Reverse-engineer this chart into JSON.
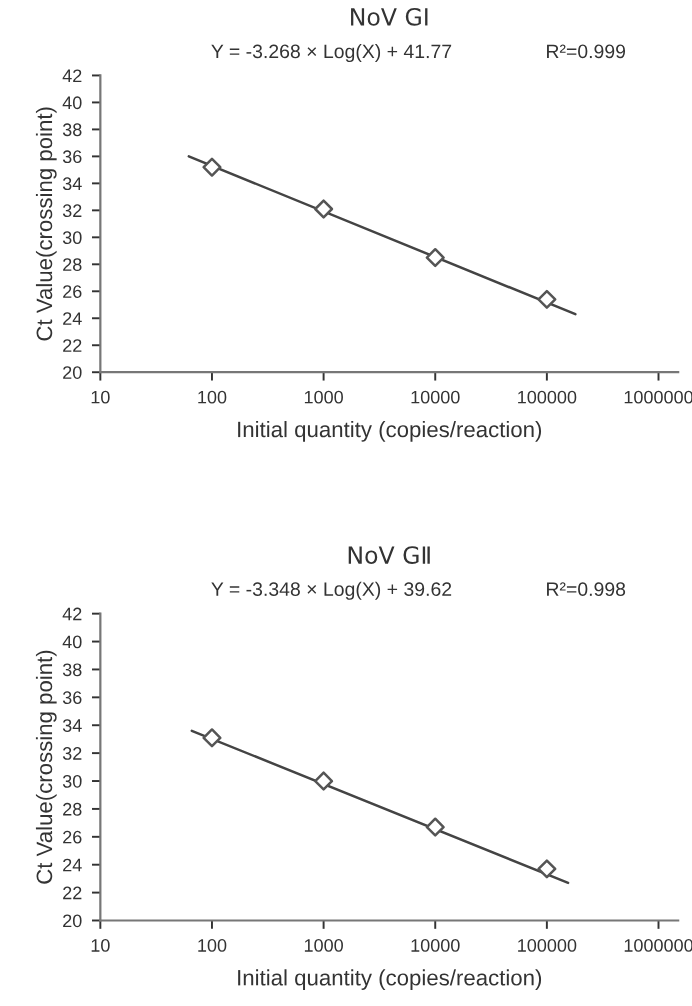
{
  "chart_data": [
    {
      "type": "scatter",
      "title": "NoV GⅠ",
      "xlabel": "Initial quantity (copies/reaction)",
      "ylabel": "Ct Value(crossing point)",
      "annotations": [
        "Y = -3.268 × Log(X) + 41.77",
        "R²=0.999"
      ],
      "series": [
        {
          "color": "#555555",
          "marker": "diamond",
          "x": [
            100,
            1000,
            10000,
            100000
          ],
          "values": [
            35.2,
            32.1,
            28.5,
            25.4
          ]
        },
        {
          "type": "line",
          "color": "#444444",
          "marker": "none",
          "x": [
            62,
            180000
          ],
          "values": [
            36.0,
            24.3
          ]
        }
      ],
      "log": "x",
      "xlim": [
        10,
        1500000
      ],
      "xticks": [
        10,
        100,
        1000,
        10000,
        100000,
        1000000
      ],
      "ylim": [
        20,
        42
      ],
      "yticks": [
        20,
        22,
        24,
        26,
        28,
        30,
        32,
        34,
        36,
        38,
        40,
        42
      ],
      "grid": false,
      "legend": false
    },
    {
      "type": "scatter",
      "title": "NoV GⅡ",
      "xlabel": "Initial quantity (copies/reaction)",
      "ylabel": "Ct Value(crossing point)",
      "annotations": [
        "Y = -3.348 × Log(X) + 39.62",
        "R²=0.998"
      ],
      "series": [
        {
          "color": "#555555",
          "marker": "diamond",
          "x": [
            100,
            1000,
            10000,
            100000
          ],
          "values": [
            33.1,
            30.0,
            26.7,
            23.7
          ]
        },
        {
          "type": "line",
          "color": "#444444",
          "marker": "none",
          "x": [
            66,
            155000
          ],
          "values": [
            33.6,
            22.7
          ]
        }
      ],
      "log": "x",
      "xlim": [
        10,
        1500000
      ],
      "xticks": [
        10,
        100,
        1000,
        10000,
        100000,
        1000000
      ],
      "ylim": [
        20,
        42
      ],
      "yticks": [
        20,
        22,
        24,
        26,
        28,
        30,
        32,
        34,
        36,
        38,
        40,
        42
      ],
      "grid": false,
      "legend": false
    }
  ]
}
